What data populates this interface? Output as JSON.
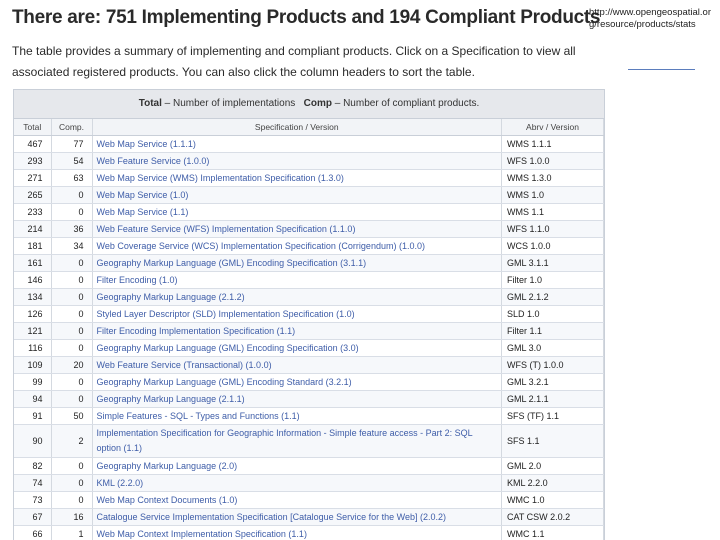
{
  "headline": "There are: 751 Implementing Products and 194 Compliant Products",
  "intro": "The table provides a summary of implementing and compliant products. Click on a Specification to view all associated registered products. You can also click the column headers to sort the table.",
  "source_url": "http://www.opengeospatial.org/resource/products/stats",
  "legend": {
    "total_key": "Total",
    "total_desc": "– Number of implementations",
    "comp_key": "Comp",
    "comp_desc": "– Number of compliant products."
  },
  "columns": {
    "total": "Total",
    "comp": "Comp.",
    "spec": "Specification / Version",
    "abrv": "Abrv / Version"
  },
  "rows": [
    {
      "total": "467",
      "comp": "77",
      "spec": "Web Map Service (1.1.1)",
      "abrv": "WMS 1.1.1"
    },
    {
      "total": "293",
      "comp": "54",
      "spec": "Web Feature Service (1.0.0)",
      "abrv": "WFS 1.0.0"
    },
    {
      "total": "271",
      "comp": "63",
      "spec": "Web Map Service (WMS) Implementation Specification (1.3.0)",
      "abrv": "WMS 1.3.0"
    },
    {
      "total": "265",
      "comp": "0",
      "spec": "Web Map Service (1.0)",
      "abrv": "WMS 1.0"
    },
    {
      "total": "233",
      "comp": "0",
      "spec": "Web Map Service (1.1)",
      "abrv": "WMS 1.1"
    },
    {
      "total": "214",
      "comp": "36",
      "spec": "Web Feature Service (WFS) Implementation Specification (1.1.0)",
      "abrv": "WFS 1.1.0"
    },
    {
      "total": "181",
      "comp": "34",
      "spec": "Web Coverage Service (WCS) Implementation Specification (Corrigendum) (1.0.0)",
      "abrv": "WCS 1.0.0"
    },
    {
      "total": "161",
      "comp": "0",
      "spec": "Geography Markup Language (GML) Encoding Specification (3.1.1)",
      "abrv": "GML 3.1.1"
    },
    {
      "total": "146",
      "comp": "0",
      "spec": "Filter Encoding (1.0)",
      "abrv": "Filter 1.0"
    },
    {
      "total": "134",
      "comp": "0",
      "spec": "Geography Markup Language (2.1.2)",
      "abrv": "GML 2.1.2"
    },
    {
      "total": "126",
      "comp": "0",
      "spec": "Styled Layer Descriptor (SLD) Implementation Specification (1.0)",
      "abrv": "SLD 1.0"
    },
    {
      "total": "121",
      "comp": "0",
      "spec": "Filter Encoding Implementation Specification (1.1)",
      "abrv": "Filter 1.1"
    },
    {
      "total": "116",
      "comp": "0",
      "spec": "Geography Markup Language (GML) Encoding Specification (3.0)",
      "abrv": "GML 3.0"
    },
    {
      "total": "109",
      "comp": "20",
      "spec": "Web Feature Service (Transactional) (1.0.0)",
      "abrv": "WFS (T) 1.0.0"
    },
    {
      "total": "99",
      "comp": "0",
      "spec": "Geography Markup Language (GML) Encoding Standard (3.2.1)",
      "abrv": "GML 3.2.1"
    },
    {
      "total": "94",
      "comp": "0",
      "spec": "Geography Markup Language (2.1.1)",
      "abrv": "GML 2.1.1"
    },
    {
      "total": "91",
      "comp": "50",
      "spec": "Simple Features - SQL - Types and Functions (1.1)",
      "abrv": "SFS (TF) 1.1"
    },
    {
      "total": "90",
      "comp": "2",
      "spec": "Implementation Specification for Geographic Information - Simple feature access - Part 2: SQL option (1.1)",
      "abrv": "SFS 1.1"
    },
    {
      "total": "82",
      "comp": "0",
      "spec": "Geography Markup Language (2.0)",
      "abrv": "GML 2.0"
    },
    {
      "total": "74",
      "comp": "0",
      "spec": "KML (2.2.0)",
      "abrv": "KML 2.2.0"
    },
    {
      "total": "73",
      "comp": "0",
      "spec": "Web Map Context Documents (1.0)",
      "abrv": "WMC 1.0"
    },
    {
      "total": "67",
      "comp": "16",
      "spec": "Catalogue Service Implementation Specification [Catalogue Service for the Web] (2.0.2)",
      "abrv": "CAT CSW 2.0.2"
    },
    {
      "total": "66",
      "comp": "1",
      "spec": "Web Map Context Implementation Specification (1.1)",
      "abrv": "WMC 1.1"
    }
  ]
}
